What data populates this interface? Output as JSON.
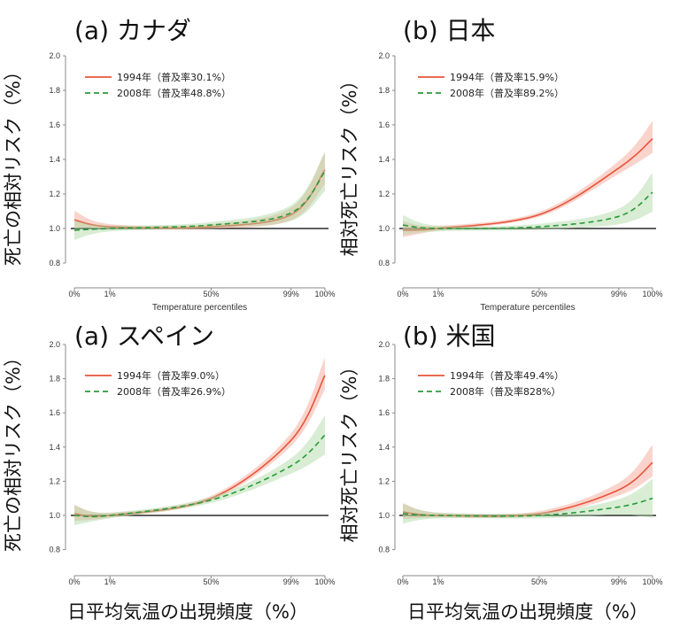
{
  "x_axis_label": "日平均気温の出現頻度（%）",
  "colors": {
    "y1994": "#e8553a",
    "y2008": "#2a9a3a",
    "band1994": "#f4a08e",
    "band2008": "#a8d8a0",
    "baseline": "#000000",
    "axis": "#888888"
  },
  "chart_data": [
    {
      "type": "line",
      "panel": "top-left",
      "title": "(a) カナダ",
      "ylabel": "死亡の相対リスク（%）",
      "xlabel_inner": "Temperature percentiles",
      "ylim": [
        0.8,
        2.0
      ],
      "y_ticks": [
        "0.8",
        "1.0",
        "1.2",
        "1.4",
        "1.6",
        "1.8",
        "2.0"
      ],
      "x_ticks": [
        "0%",
        "1%",
        "50%",
        "99%",
        "100%"
      ],
      "series": [
        {
          "name": "1994年（普及率30.1%）",
          "x": [
            "0%",
            "1%",
            "50%",
            "99%",
            "100%"
          ],
          "values": [
            1.05,
            1.01,
            1.01,
            1.08,
            1.34
          ]
        },
        {
          "name": "2008年（普及率48.8%）",
          "x": [
            "0%",
            "1%",
            "50%",
            "99%",
            "100%"
          ],
          "values": [
            0.99,
            1.0,
            1.02,
            1.09,
            1.33
          ]
        }
      ]
    },
    {
      "type": "line",
      "panel": "top-right",
      "title": "(b) 日本",
      "ylabel": "相対死亡リスク（%）",
      "xlabel_inner": "Temperature percentiles",
      "ylim": [
        0.8,
        2.0
      ],
      "y_ticks": [
        "0.8",
        "1.0",
        "1.2",
        "1.4",
        "1.6",
        "1.8",
        "2.0"
      ],
      "x_ticks": [
        "0%",
        "1%",
        "50%",
        "99%",
        "100%"
      ],
      "series": [
        {
          "name": "1994年（普及率15.9%）",
          "x": [
            "0%",
            "1%",
            "50%",
            "99%",
            "100%"
          ],
          "values": [
            0.99,
            1.0,
            1.08,
            1.35,
            1.52
          ]
        },
        {
          "name": "2008年（普及率89.2%）",
          "x": [
            "0%",
            "1%",
            "50%",
            "99%",
            "100%"
          ],
          "values": [
            1.02,
            1.0,
            1.01,
            1.07,
            1.21
          ]
        }
      ]
    },
    {
      "type": "line",
      "panel": "bottom-left",
      "title": "(a) スペイン",
      "ylabel": "死亡の相対リスク（%）",
      "ylim": [
        0.8,
        2.0
      ],
      "y_ticks": [
        "0.8",
        "1.0",
        "1.2",
        "1.4",
        "1.6",
        "1.8",
        "2.0"
      ],
      "x_ticks": [
        "0%",
        "1%",
        "50%",
        "99%",
        "100%"
      ],
      "series": [
        {
          "name": "1994年（普及率9.0%）",
          "x": [
            "0%",
            "1%",
            "50%",
            "99%",
            "100%"
          ],
          "values": [
            1.01,
            1.0,
            1.1,
            1.44,
            1.82
          ]
        },
        {
          "name": "2008年（普及率26.9%）",
          "x": [
            "0%",
            "1%",
            "50%",
            "99%",
            "100%"
          ],
          "values": [
            1.0,
            1.0,
            1.09,
            1.29,
            1.47
          ]
        }
      ]
    },
    {
      "type": "line",
      "panel": "bottom-right",
      "title": "(b) 米国",
      "ylabel": "相対死亡リスク（%）",
      "ylim": [
        0.8,
        2.0
      ],
      "y_ticks": [
        "0.8",
        "1.0",
        "1.2",
        "1.4",
        "1.6",
        "1.8",
        "2.0"
      ],
      "x_ticks": [
        "0%",
        "1%",
        "50%",
        "99%",
        "100%"
      ],
      "series": [
        {
          "name": "1994年（普及率49.4%）",
          "x": [
            "0%",
            "1%",
            "50%",
            "99%",
            "100%"
          ],
          "values": [
            1.02,
            1.0,
            1.01,
            1.15,
            1.31
          ]
        },
        {
          "name": "2008年（普及率828%）",
          "x": [
            "0%",
            "1%",
            "50%",
            "99%",
            "100%"
          ],
          "values": [
            1.01,
            1.0,
            1.0,
            1.05,
            1.1
          ]
        }
      ]
    }
  ]
}
